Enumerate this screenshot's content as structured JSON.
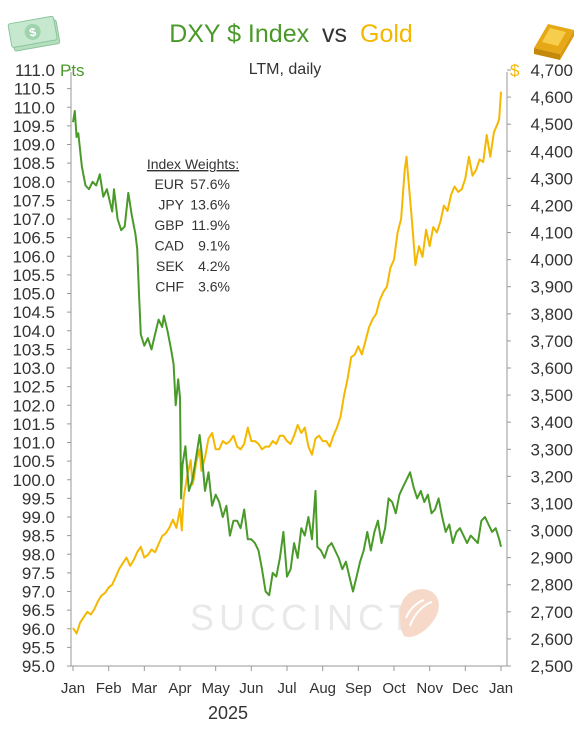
{
  "header": {
    "title_part1": "DXY $ Index",
    "title_vs": "vs",
    "title_part2": "Gold",
    "subtitle": "LTM, daily"
  },
  "colors": {
    "dxy": "#4a9a2a",
    "gold": "#f5b800",
    "text": "#333333",
    "axis": "#999999",
    "watermark": "#e9e9e9",
    "watermark_accent": "#f6d9c9"
  },
  "icons": {
    "left": "dollar-bills-icon",
    "right": "gold-bar-icon",
    "watermark": "succinct-logo-icon"
  },
  "watermark_text": "SUCCINCT",
  "weights_box": {
    "heading": "Index Weights:",
    "rows": [
      {
        "ccy": "EUR",
        "pct": "57.6%"
      },
      {
        "ccy": "JPY",
        "pct": "13.6%"
      },
      {
        "ccy": "GBP",
        "pct": "11.9%"
      },
      {
        "ccy": "CAD",
        "pct": "9.1%"
      },
      {
        "ccy": "SEK",
        "pct": "4.2%"
      },
      {
        "ccy": "CHF",
        "pct": "3.6%"
      }
    ]
  },
  "chart_data": {
    "type": "line",
    "title": "DXY $ Index vs Gold",
    "subtitle": "LTM, daily",
    "xlabel": "2025",
    "x_categories": [
      "Jan",
      "Feb",
      "Mar",
      "Apr",
      "May",
      "Jun",
      "Jul",
      "Aug",
      "Sep",
      "Oct",
      "Nov",
      "Dec",
      "Jan"
    ],
    "left_axis": {
      "unit": "Pts",
      "ylim": [
        95.0,
        111.0
      ],
      "ticks": [
        "95.0",
        "95.5",
        "96.0",
        "96.5",
        "97.0",
        "97.5",
        "98.0",
        "98.5",
        "99.0",
        "99.5",
        "100.0",
        "100.5",
        "101.0",
        "101.5",
        "102.0",
        "102.5",
        "103.0",
        "103.5",
        "104.0",
        "104.5",
        "105.0",
        "105.5",
        "106.0",
        "106.5",
        "107.0",
        "107.5",
        "108.0",
        "108.5",
        "109.0",
        "109.5",
        "110.0",
        "110.5",
        "111.0"
      ]
    },
    "right_axis": {
      "unit": "$",
      "ylim": [
        2500,
        4700
      ],
      "ticks": [
        "2,500",
        "2,600",
        "2,700",
        "2,800",
        "2,900",
        "3,000",
        "3,100",
        "3,200",
        "3,300",
        "3,400",
        "3,500",
        "3,600",
        "3,700",
        "3,800",
        "3,900",
        "4,000",
        "4,100",
        "4,200",
        "4,300",
        "4,400",
        "4,500",
        "4,600",
        "4,700"
      ]
    },
    "grid": false,
    "series": [
      {
        "name": "DXY $ Index",
        "axis": "left",
        "points": [
          [
            0.0,
            109.6
          ],
          [
            0.05,
            109.9
          ],
          [
            0.1,
            109.2
          ],
          [
            0.15,
            109.3
          ],
          [
            0.25,
            108.4
          ],
          [
            0.35,
            107.9
          ],
          [
            0.45,
            107.8
          ],
          [
            0.55,
            108.0
          ],
          [
            0.65,
            107.9
          ],
          [
            0.75,
            108.2
          ],
          [
            0.85,
            107.6
          ],
          [
            0.95,
            107.8
          ],
          [
            1.0,
            107.6
          ],
          [
            1.1,
            107.2
          ],
          [
            1.15,
            107.8
          ],
          [
            1.25,
            107.0
          ],
          [
            1.35,
            106.7
          ],
          [
            1.45,
            106.8
          ],
          [
            1.55,
            107.7
          ],
          [
            1.65,
            107.1
          ],
          [
            1.75,
            106.6
          ],
          [
            1.8,
            106.2
          ],
          [
            1.85,
            105.0
          ],
          [
            1.9,
            103.9
          ],
          [
            2.0,
            103.6
          ],
          [
            2.1,
            103.8
          ],
          [
            2.2,
            103.5
          ],
          [
            2.3,
            103.9
          ],
          [
            2.4,
            104.3
          ],
          [
            2.5,
            104.1
          ],
          [
            2.55,
            104.4
          ],
          [
            2.65,
            104.0
          ],
          [
            2.75,
            103.5
          ],
          [
            2.82,
            103.1
          ],
          [
            2.88,
            102.0
          ],
          [
            2.95,
            102.7
          ],
          [
            3.0,
            102.2
          ],
          [
            3.03,
            99.5
          ],
          [
            3.07,
            100.4
          ],
          [
            3.15,
            100.9
          ],
          [
            3.25,
            99.7
          ],
          [
            3.35,
            100.0
          ],
          [
            3.45,
            100.6
          ],
          [
            3.55,
            101.2
          ],
          [
            3.6,
            100.8
          ],
          [
            3.7,
            99.7
          ],
          [
            3.8,
            100.2
          ],
          [
            3.9,
            99.3
          ],
          [
            4.0,
            99.6
          ],
          [
            4.1,
            99.4
          ],
          [
            4.2,
            99.0
          ],
          [
            4.3,
            99.3
          ],
          [
            4.4,
            98.5
          ],
          [
            4.5,
            98.9
          ],
          [
            4.6,
            98.9
          ],
          [
            4.7,
            98.7
          ],
          [
            4.8,
            99.2
          ],
          [
            4.9,
            98.4
          ],
          [
            5.0,
            98.4
          ],
          [
            5.1,
            98.3
          ],
          [
            5.2,
            98.1
          ],
          [
            5.3,
            97.6
          ],
          [
            5.4,
            97.0
          ],
          [
            5.5,
            96.9
          ],
          [
            5.6,
            97.5
          ],
          [
            5.7,
            97.4
          ],
          [
            5.8,
            97.9
          ],
          [
            5.9,
            98.6
          ],
          [
            6.0,
            97.4
          ],
          [
            6.1,
            97.6
          ],
          [
            6.2,
            98.3
          ],
          [
            6.3,
            97.9
          ],
          [
            6.4,
            98.7
          ],
          [
            6.5,
            98.5
          ],
          [
            6.6,
            99.0
          ],
          [
            6.7,
            98.4
          ],
          [
            6.8,
            99.7
          ],
          [
            6.85,
            98.2
          ],
          [
            6.95,
            98.1
          ],
          [
            7.05,
            97.9
          ],
          [
            7.15,
            98.2
          ],
          [
            7.25,
            98.3
          ],
          [
            7.35,
            98.1
          ],
          [
            7.45,
            97.9
          ],
          [
            7.55,
            97.6
          ],
          [
            7.65,
            97.8
          ],
          [
            7.75,
            97.4
          ],
          [
            7.85,
            97.0
          ],
          [
            7.95,
            97.4
          ],
          [
            8.05,
            97.8
          ],
          [
            8.15,
            98.1
          ],
          [
            8.25,
            98.6
          ],
          [
            8.35,
            98.1
          ],
          [
            8.45,
            98.6
          ],
          [
            8.55,
            98.9
          ],
          [
            8.65,
            98.3
          ],
          [
            8.75,
            98.7
          ],
          [
            8.85,
            99.5
          ],
          [
            8.95,
            99.4
          ],
          [
            9.05,
            99.1
          ],
          [
            9.15,
            99.6
          ],
          [
            9.25,
            99.8
          ],
          [
            9.35,
            100.0
          ],
          [
            9.45,
            100.2
          ],
          [
            9.55,
            99.8
          ],
          [
            9.65,
            99.5
          ],
          [
            9.75,
            99.7
          ],
          [
            9.85,
            99.4
          ],
          [
            9.95,
            99.6
          ],
          [
            10.05,
            99.1
          ],
          [
            10.15,
            99.2
          ],
          [
            10.25,
            99.5
          ],
          [
            10.35,
            99.0
          ],
          [
            10.45,
            98.6
          ],
          [
            10.55,
            98.8
          ],
          [
            10.65,
            98.3
          ],
          [
            10.75,
            98.6
          ],
          [
            10.85,
            98.7
          ],
          [
            10.95,
            98.5
          ],
          [
            11.05,
            98.3
          ],
          [
            11.15,
            98.5
          ],
          [
            11.25,
            98.4
          ],
          [
            11.35,
            98.3
          ],
          [
            11.45,
            98.9
          ],
          [
            11.55,
            99.0
          ],
          [
            11.65,
            98.8
          ],
          [
            11.75,
            98.6
          ],
          [
            11.85,
            98.7
          ],
          [
            11.95,
            98.4
          ],
          [
            12.0,
            98.2
          ]
        ]
      },
      {
        "name": "Gold",
        "axis": "right",
        "points": [
          [
            0.0,
            2640
          ],
          [
            0.1,
            2620
          ],
          [
            0.2,
            2660
          ],
          [
            0.3,
            2680
          ],
          [
            0.4,
            2700
          ],
          [
            0.5,
            2690
          ],
          [
            0.6,
            2710
          ],
          [
            0.7,
            2740
          ],
          [
            0.8,
            2760
          ],
          [
            0.9,
            2770
          ],
          [
            1.0,
            2790
          ],
          [
            1.1,
            2800
          ],
          [
            1.2,
            2830
          ],
          [
            1.3,
            2860
          ],
          [
            1.4,
            2880
          ],
          [
            1.5,
            2900
          ],
          [
            1.6,
            2870
          ],
          [
            1.7,
            2890
          ],
          [
            1.8,
            2920
          ],
          [
            1.9,
            2940
          ],
          [
            2.0,
            2900
          ],
          [
            2.1,
            2910
          ],
          [
            2.2,
            2930
          ],
          [
            2.3,
            2920
          ],
          [
            2.4,
            2950
          ],
          [
            2.5,
            2980
          ],
          [
            2.6,
            2990
          ],
          [
            2.7,
            3010
          ],
          [
            2.8,
            3040
          ],
          [
            2.9,
            3010
          ],
          [
            3.0,
            3080
          ],
          [
            3.05,
            3000
          ],
          [
            3.1,
            3120
          ],
          [
            3.2,
            3200
          ],
          [
            3.3,
            3260
          ],
          [
            3.35,
            3170
          ],
          [
            3.4,
            3200
          ],
          [
            3.45,
            3250
          ],
          [
            3.55,
            3300
          ],
          [
            3.6,
            3220
          ],
          [
            3.7,
            3270
          ],
          [
            3.8,
            3340
          ],
          [
            3.9,
            3360
          ],
          [
            4.0,
            3300
          ],
          [
            4.1,
            3300
          ],
          [
            4.2,
            3330
          ],
          [
            4.3,
            3320
          ],
          [
            4.4,
            3330
          ],
          [
            4.5,
            3350
          ],
          [
            4.6,
            3310
          ],
          [
            4.7,
            3300
          ],
          [
            4.8,
            3320
          ],
          [
            4.9,
            3380
          ],
          [
            5.0,
            3330
          ],
          [
            5.1,
            3330
          ],
          [
            5.2,
            3320
          ],
          [
            5.3,
            3300
          ],
          [
            5.4,
            3310
          ],
          [
            5.5,
            3310
          ],
          [
            5.6,
            3330
          ],
          [
            5.7,
            3320
          ],
          [
            5.8,
            3350
          ],
          [
            5.9,
            3350
          ],
          [
            6.0,
            3330
          ],
          [
            6.1,
            3320
          ],
          [
            6.2,
            3350
          ],
          [
            6.3,
            3390
          ],
          [
            6.4,
            3360
          ],
          [
            6.5,
            3380
          ],
          [
            6.6,
            3310
          ],
          [
            6.7,
            3280
          ],
          [
            6.8,
            3340
          ],
          [
            6.9,
            3350
          ],
          [
            7.0,
            3330
          ],
          [
            7.1,
            3330
          ],
          [
            7.2,
            3310
          ],
          [
            7.3,
            3350
          ],
          [
            7.4,
            3380
          ],
          [
            7.5,
            3420
          ],
          [
            7.6,
            3500
          ],
          [
            7.7,
            3560
          ],
          [
            7.8,
            3640
          ],
          [
            7.9,
            3650
          ],
          [
            8.0,
            3680
          ],
          [
            8.1,
            3650
          ],
          [
            8.2,
            3700
          ],
          [
            8.3,
            3750
          ],
          [
            8.4,
            3780
          ],
          [
            8.5,
            3800
          ],
          [
            8.6,
            3850
          ],
          [
            8.7,
            3880
          ],
          [
            8.8,
            3900
          ],
          [
            8.9,
            3970
          ],
          [
            9.0,
            4000
          ],
          [
            9.1,
            4100
          ],
          [
            9.2,
            4150
          ],
          [
            9.3,
            4330
          ],
          [
            9.35,
            4380
          ],
          [
            9.4,
            4300
          ],
          [
            9.5,
            4150
          ],
          [
            9.6,
            3980
          ],
          [
            9.7,
            4050
          ],
          [
            9.8,
            4010
          ],
          [
            9.9,
            4110
          ],
          [
            10.0,
            4050
          ],
          [
            10.1,
            4120
          ],
          [
            10.2,
            4100
          ],
          [
            10.3,
            4140
          ],
          [
            10.4,
            4200
          ],
          [
            10.5,
            4180
          ],
          [
            10.6,
            4240
          ],
          [
            10.7,
            4270
          ],
          [
            10.8,
            4250
          ],
          [
            10.9,
            4260
          ],
          [
            11.0,
            4300
          ],
          [
            11.1,
            4380
          ],
          [
            11.2,
            4310
          ],
          [
            11.3,
            4330
          ],
          [
            11.4,
            4370
          ],
          [
            11.5,
            4360
          ],
          [
            11.6,
            4460
          ],
          [
            11.7,
            4380
          ],
          [
            11.8,
            4470
          ],
          [
            11.9,
            4500
          ],
          [
            11.95,
            4520
          ],
          [
            12.0,
            4620
          ]
        ]
      }
    ]
  }
}
